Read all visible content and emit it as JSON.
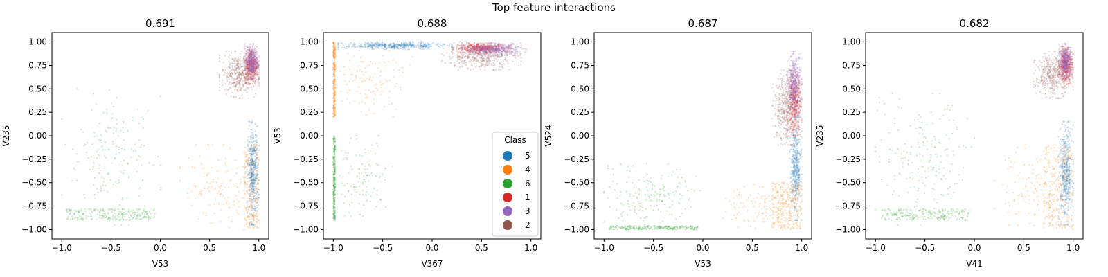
{
  "figure": {
    "suptitle": "Top feature interactions"
  },
  "legend": {
    "title": "Class",
    "placement": "lower-right of panel 2",
    "entries": [
      {
        "label": "5",
        "color": "#1f77b4"
      },
      {
        "label": "4",
        "color": "#ff7f0e"
      },
      {
        "label": "6",
        "color": "#2ca02c"
      },
      {
        "label": "1",
        "color": "#d62728"
      },
      {
        "label": "3",
        "color": "#9467bd"
      },
      {
        "label": "2",
        "color": "#8c564b"
      }
    ]
  },
  "chart_data": [
    {
      "type": "scatter",
      "title": "0.691",
      "xlabel": "V53",
      "ylabel": "V235",
      "xlim": [
        -1.1,
        1.1
      ],
      "ylim": [
        -1.1,
        1.1
      ],
      "xticks": [
        "−1.0",
        "−0.5",
        "0.0",
        "0.5",
        "1.0"
      ],
      "yticks": [
        "−1.00",
        "−0.75",
        "−0.50",
        "−0.25",
        "0.00",
        "0.25",
        "0.50",
        "0.75",
        "1.00"
      ],
      "clusters": [
        {
          "class": "6",
          "color": "#2ca02c",
          "x_range": [
            -1.0,
            0.0
          ],
          "y_range": [
            -0.95,
            0.5
          ],
          "dense_band_y": [
            -0.9,
            -0.78
          ]
        },
        {
          "class": "4",
          "color": "#ff7f0e",
          "x_range": [
            0.2,
            1.0
          ],
          "y_range": [
            -1.0,
            -0.1
          ],
          "core_x": [
            0.85,
            1.0
          ]
        },
        {
          "class": "5",
          "color": "#1f77b4",
          "x_range": [
            0.88,
            1.0
          ],
          "y_range": [
            -0.95,
            0.15
          ]
        },
        {
          "class": "2",
          "color": "#8c564b",
          "x_range": [
            0.6,
            1.0
          ],
          "y_range": [
            0.4,
            0.9
          ]
        },
        {
          "class": "1",
          "color": "#d62728",
          "x_range": [
            0.85,
            1.0
          ],
          "y_range": [
            0.55,
            0.95
          ]
        },
        {
          "class": "3",
          "color": "#9467bd",
          "x_range": [
            0.85,
            1.0
          ],
          "y_range": [
            0.6,
            0.98
          ]
        }
      ]
    },
    {
      "type": "scatter",
      "title": "0.688",
      "xlabel": "V367",
      "ylabel": "V53",
      "xlim": [
        -1.1,
        1.1
      ],
      "ylim": [
        -1.1,
        1.1
      ],
      "xticks": [
        "−1.0",
        "−0.5",
        "0.0",
        "0.5",
        "1.0"
      ],
      "yticks": [
        "−1.00",
        "−0.75",
        "−0.50",
        "−0.25",
        "0.00",
        "0.25",
        "0.50",
        "0.75",
        "1.00"
      ],
      "clusters": [
        {
          "class": "6",
          "color": "#2ca02c",
          "x_range": [
            -1.0,
            -0.4
          ],
          "y_range": [
            -0.9,
            0.0
          ],
          "core_x": [
            -1.0,
            -0.98
          ]
        },
        {
          "class": "4",
          "color": "#ff7f0e",
          "x_range": [
            -1.0,
            -0.2
          ],
          "y_range": [
            0.2,
            1.0
          ],
          "core_x": [
            -1.0,
            -0.98
          ]
        },
        {
          "class": "5",
          "color": "#1f77b4",
          "x_range": [
            -0.95,
            0.2
          ],
          "y_range": [
            0.92,
            1.0
          ]
        },
        {
          "class": "2",
          "color": "#8c564b",
          "x_range": [
            0.1,
            0.9
          ],
          "y_range": [
            0.7,
            1.0
          ]
        },
        {
          "class": "1",
          "color": "#d62728",
          "x_range": [
            0.2,
            0.8
          ],
          "y_range": [
            0.88,
            0.99
          ]
        },
        {
          "class": "3",
          "color": "#9467bd",
          "x_range": [
            0.3,
            0.95
          ],
          "y_range": [
            0.85,
            0.99
          ]
        }
      ]
    },
    {
      "type": "scatter",
      "title": "0.687",
      "xlabel": "V53",
      "ylabel": "V524",
      "xlim": [
        -1.1,
        1.1
      ],
      "ylim": [
        -1.1,
        1.1
      ],
      "xticks": [
        "−1.0",
        "−0.5",
        "0.0",
        "0.5",
        "1.0"
      ],
      "yticks": [
        "−1.00",
        "−0.75",
        "−0.50",
        "−0.25",
        "0.00",
        "0.25",
        "0.50",
        "0.75",
        "1.00"
      ],
      "clusters": [
        {
          "class": "6",
          "color": "#2ca02c",
          "x_range": [
            -1.0,
            0.0
          ],
          "y_range": [
            -1.0,
            -0.3
          ],
          "dense_band_y": [
            -1.0,
            -0.96
          ]
        },
        {
          "class": "4",
          "color": "#ff7f0e",
          "x_range": [
            0.2,
            1.0
          ],
          "y_range": [
            -1.0,
            -0.5
          ],
          "core_x": [
            0.7,
            1.0
          ]
        },
        {
          "class": "5",
          "color": "#1f77b4",
          "x_range": [
            0.88,
            1.0
          ],
          "y_range": [
            -0.9,
            0.2
          ]
        },
        {
          "class": "2",
          "color": "#8c564b",
          "x_range": [
            0.7,
            1.0
          ],
          "y_range": [
            -0.1,
            0.7
          ]
        },
        {
          "class": "1",
          "color": "#d62728",
          "x_range": [
            0.85,
            1.0
          ],
          "y_range": [
            0.0,
            0.7
          ]
        },
        {
          "class": "3",
          "color": "#9467bd",
          "x_range": [
            0.85,
            1.0
          ],
          "y_range": [
            0.2,
            0.9
          ]
        }
      ]
    },
    {
      "type": "scatter",
      "title": "0.682",
      "xlabel": "V41",
      "ylabel": "V235",
      "xlim": [
        -1.1,
        1.1
      ],
      "ylim": [
        -1.1,
        1.1
      ],
      "xticks": [
        "−1.0",
        "−0.5",
        "0.0",
        "0.5",
        "1.0"
      ],
      "yticks": [
        "−1.00",
        "−0.75",
        "−0.50",
        "−0.25",
        "0.00",
        "0.25",
        "0.50",
        "0.75",
        "1.00"
      ],
      "clusters": [
        {
          "class": "6",
          "color": "#2ca02c",
          "x_range": [
            -1.0,
            0.0
          ],
          "y_range": [
            -0.95,
            0.45
          ],
          "dense_band_y": [
            -0.9,
            -0.78
          ]
        },
        {
          "class": "4",
          "color": "#ff7f0e",
          "x_range": [
            0.2,
            1.0
          ],
          "y_range": [
            -1.0,
            -0.1
          ],
          "core_x": [
            0.7,
            1.0
          ]
        },
        {
          "class": "5",
          "color": "#1f77b4",
          "x_range": [
            0.85,
            1.0
          ],
          "y_range": [
            -0.95,
            0.15
          ]
        },
        {
          "class": "2",
          "color": "#8c564b",
          "x_range": [
            0.6,
            1.0
          ],
          "y_range": [
            0.4,
            0.9
          ]
        },
        {
          "class": "1",
          "color": "#d62728",
          "x_range": [
            0.85,
            1.0
          ],
          "y_range": [
            0.55,
            0.95
          ]
        },
        {
          "class": "3",
          "color": "#9467bd",
          "x_range": [
            0.85,
            1.0
          ],
          "y_range": [
            0.6,
            0.98
          ]
        }
      ]
    }
  ]
}
